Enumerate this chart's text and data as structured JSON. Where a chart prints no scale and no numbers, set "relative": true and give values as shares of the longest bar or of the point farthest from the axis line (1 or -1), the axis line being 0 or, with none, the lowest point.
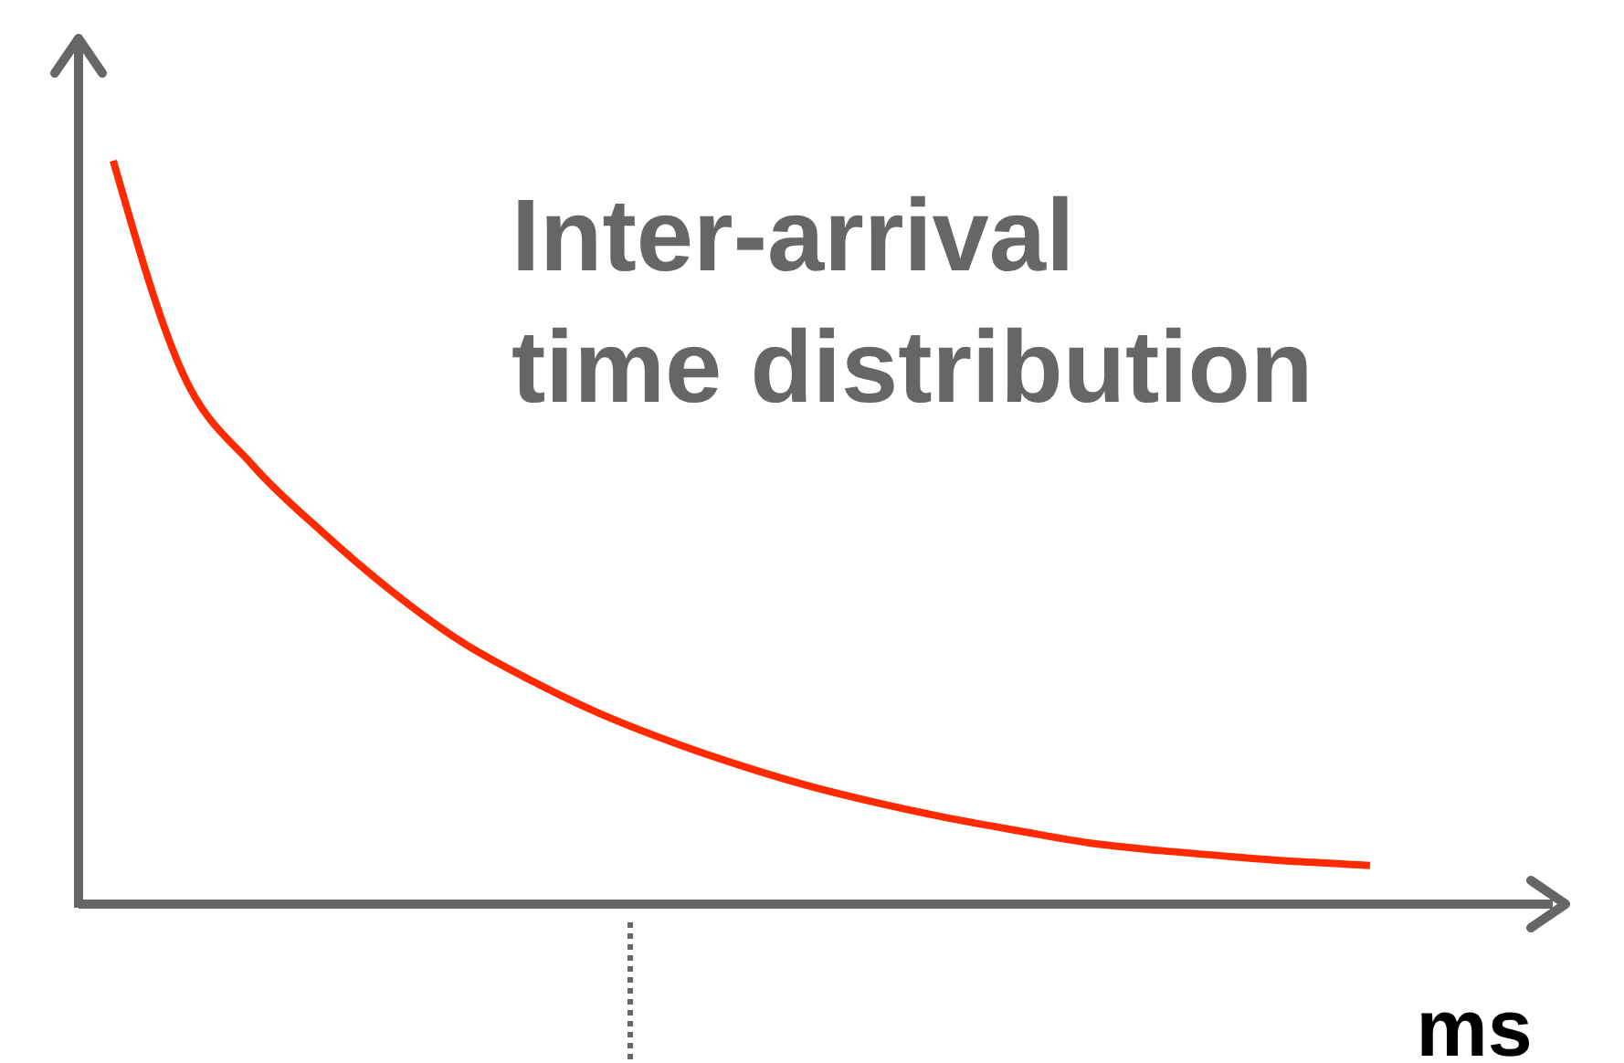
{
  "chart_data": {
    "type": "line",
    "title": "Inter-arrival time distribution",
    "xlabel": "ms",
    "relative": true,
    "categories": [
      null,
      null,
      null,
      null,
      null,
      null,
      null,
      null,
      null,
      null,
      null,
      null,
      null,
      null,
      null,
      null,
      null,
      null,
      null
    ],
    "series": [
      {
        "color": "#ff2a00",
        "values": [
          1.0,
          0.713,
          0.59,
          0.5,
          0.42,
          0.352,
          0.3,
          0.255,
          0.218,
          0.186,
          0.158,
          0.135,
          0.115,
          0.098,
          0.082,
          0.072,
          0.064,
          0.057,
          0.052
        ]
      }
    ],
    "marker": "none",
    "line_style": "solid"
  }
}
